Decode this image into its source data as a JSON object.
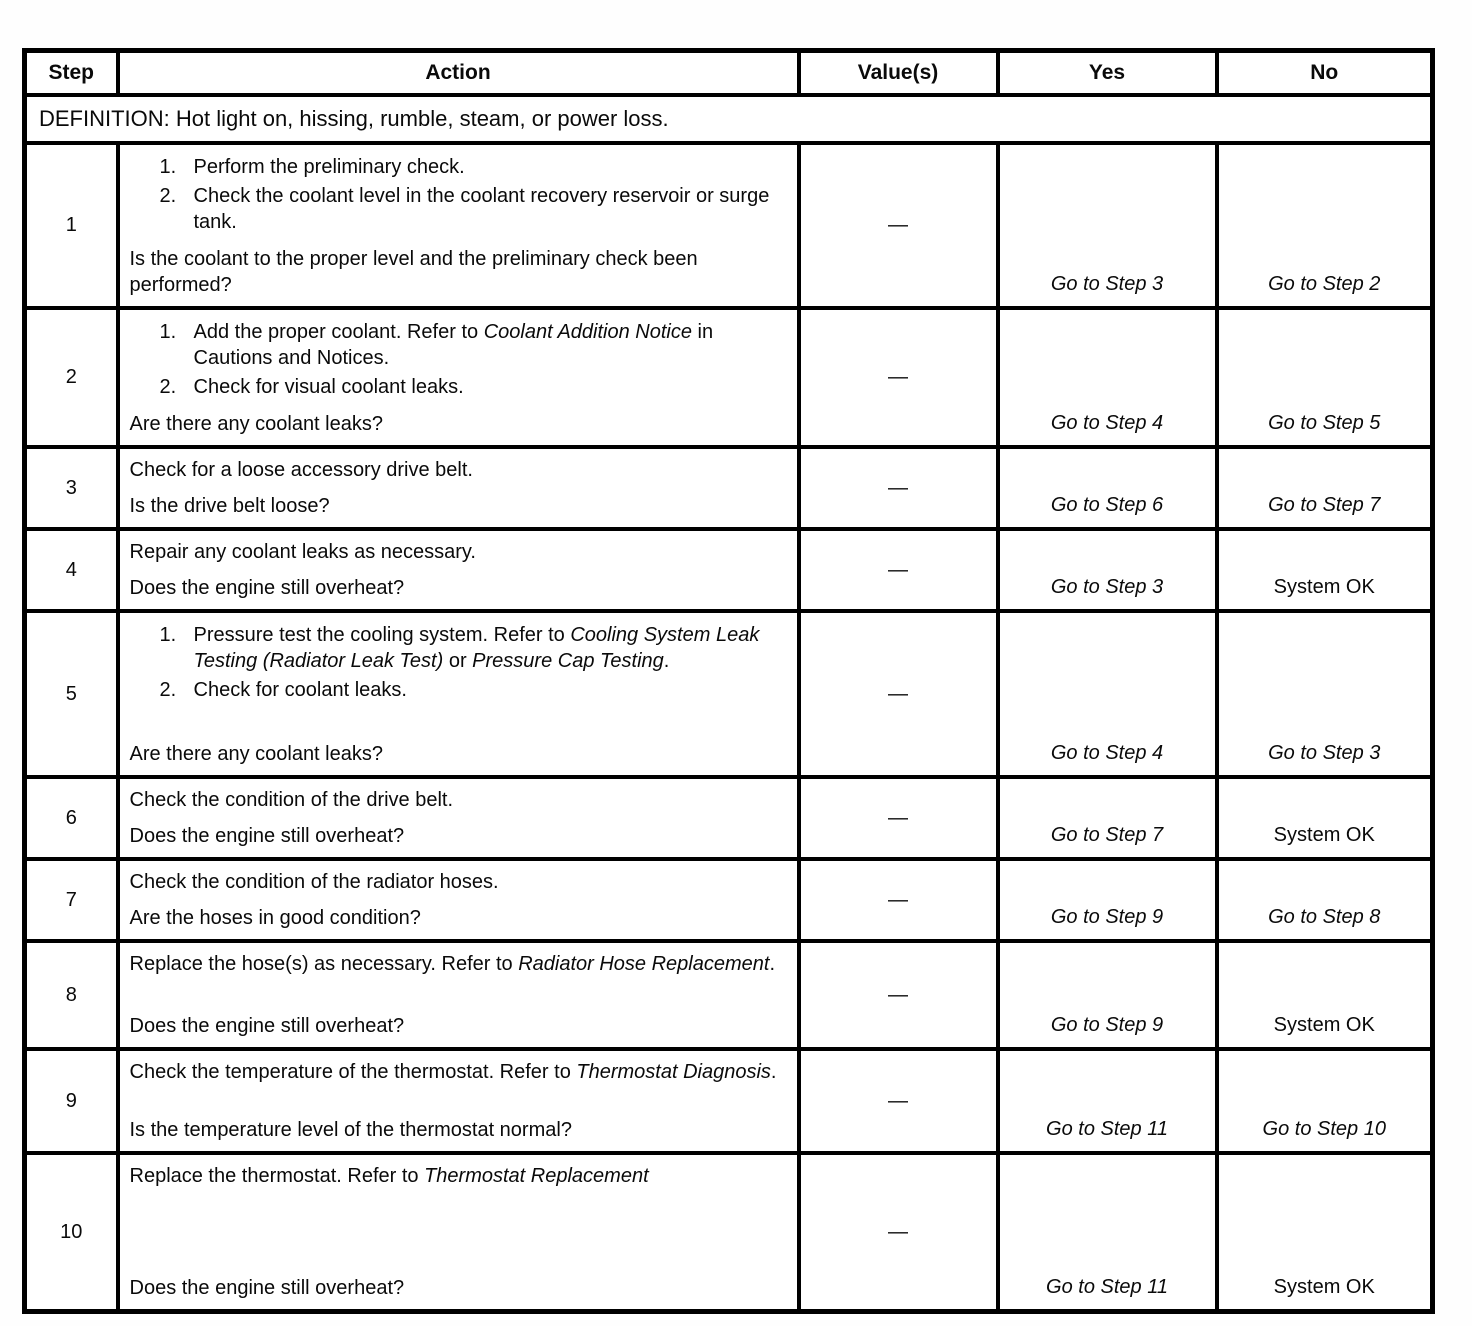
{
  "table": {
    "headers": {
      "step": "Step",
      "action": "Action",
      "values": "Value(s)",
      "yes": "Yes",
      "no": "No"
    },
    "definition": "DEFINITION: Hot light on, hissing, rumble, steam, or power loss.",
    "rows": [
      {
        "step": "1",
        "items": [
          {
            "n": "1.",
            "parts": [
              {
                "t": "Perform the preliminary check."
              }
            ]
          },
          {
            "n": "2.",
            "parts": [
              {
                "t": "Check the coolant level in the coolant recovery reservoir or surge tank."
              }
            ]
          }
        ],
        "question": "Is the coolant to the proper level and the preliminary check been performed?",
        "value": "—",
        "yes": {
          "text": "Go to Step 3",
          "italic": true
        },
        "no": {
          "text": "Go to Step 2",
          "italic": true
        }
      },
      {
        "step": "2",
        "items": [
          {
            "n": "1.",
            "parts": [
              {
                "t": "Add the proper coolant. Refer to "
              },
              {
                "t": "Coolant Addition Notice",
                "i": true
              },
              {
                "t": " in Cautions and Notices."
              }
            ]
          },
          {
            "n": "2.",
            "parts": [
              {
                "t": "Check for visual coolant leaks."
              }
            ]
          }
        ],
        "question": "Are there any coolant leaks?",
        "value": "—",
        "yes": {
          "text": "Go to Step 4",
          "italic": true
        },
        "no": {
          "text": "Go to Step 5",
          "italic": true
        }
      },
      {
        "step": "3",
        "lead": [
          [
            {
              "t": "Check for a loose accessory drive belt."
            }
          ]
        ],
        "question": "Is the drive belt loose?",
        "value": "—",
        "yes": {
          "text": "Go to Step 6",
          "italic": true
        },
        "no": {
          "text": "Go to Step 7",
          "italic": true
        }
      },
      {
        "step": "4",
        "lead": [
          [
            {
              "t": "Repair any coolant leaks as necessary."
            }
          ]
        ],
        "question": "Does the engine still overheat?",
        "value": "—",
        "yes": {
          "text": "Go to Step 3",
          "italic": true
        },
        "no": {
          "text": "System OK",
          "italic": false
        }
      },
      {
        "step": "5",
        "items": [
          {
            "n": "1.",
            "parts": [
              {
                "t": "Pressure test the cooling system. Refer to "
              },
              {
                "t": "Cooling System Leak Testing (Radiator Leak Test)",
                "i": true
              },
              {
                "t": " or "
              },
              {
                "t": "Pressure Cap Testing",
                "i": true
              },
              {
                "t": "."
              }
            ]
          },
          {
            "n": "2.",
            "parts": [
              {
                "t": "Check for coolant leaks."
              }
            ]
          }
        ],
        "question": "Are there any coolant leaks?",
        "value": "—",
        "yes": {
          "text": "Go to Step 4",
          "italic": true
        },
        "no": {
          "text": "Go to Step 3",
          "italic": true
        }
      },
      {
        "step": "6",
        "lead": [
          [
            {
              "t": "Check the condition of the drive belt."
            }
          ]
        ],
        "question": "Does the engine still overheat?",
        "value": "—",
        "yes": {
          "text": "Go to Step 7",
          "italic": true
        },
        "no": {
          "text": "System OK",
          "italic": false
        }
      },
      {
        "step": "7",
        "lead": [
          [
            {
              "t": "Check the condition of the radiator hoses."
            }
          ]
        ],
        "question": "Are the hoses in good condition?",
        "value": "—",
        "yes": {
          "text": "Go to Step 9",
          "italic": true
        },
        "no": {
          "text": "Go to Step 8",
          "italic": true
        }
      },
      {
        "step": "8",
        "lead": [
          [
            {
              "t": "Replace the hose(s) as necessary. Refer to "
            },
            {
              "t": "Radiator Hose Replacement",
              "i": true
            },
            {
              "t": "."
            }
          ]
        ],
        "question": "Does the engine still overheat?",
        "value": "—",
        "yes": {
          "text": "Go to Step 9",
          "italic": true
        },
        "no": {
          "text": "System OK",
          "italic": false
        }
      },
      {
        "step": "9",
        "lead": [
          [
            {
              "t": "Check the temperature of the thermostat. Refer to "
            },
            {
              "t": "Thermostat Diagnosis",
              "i": true
            },
            {
              "t": "."
            }
          ]
        ],
        "question": "Is the temperature level of the thermostat normal?",
        "value": "—",
        "yes": {
          "text": "Go to Step 11",
          "italic": true
        },
        "no": {
          "text": "Go to Step 10",
          "italic": true
        }
      },
      {
        "step": "10",
        "lead": [
          [
            {
              "t": "Replace the thermostat. Refer to "
            },
            {
              "t": "Thermostat Replacement",
              "i": true
            }
          ]
        ],
        "question": "Does the engine still overheat?",
        "value": "—",
        "yes": {
          "text": "Go to Step 11",
          "italic": true
        },
        "no": {
          "text": "System OK",
          "italic": false
        }
      }
    ]
  }
}
